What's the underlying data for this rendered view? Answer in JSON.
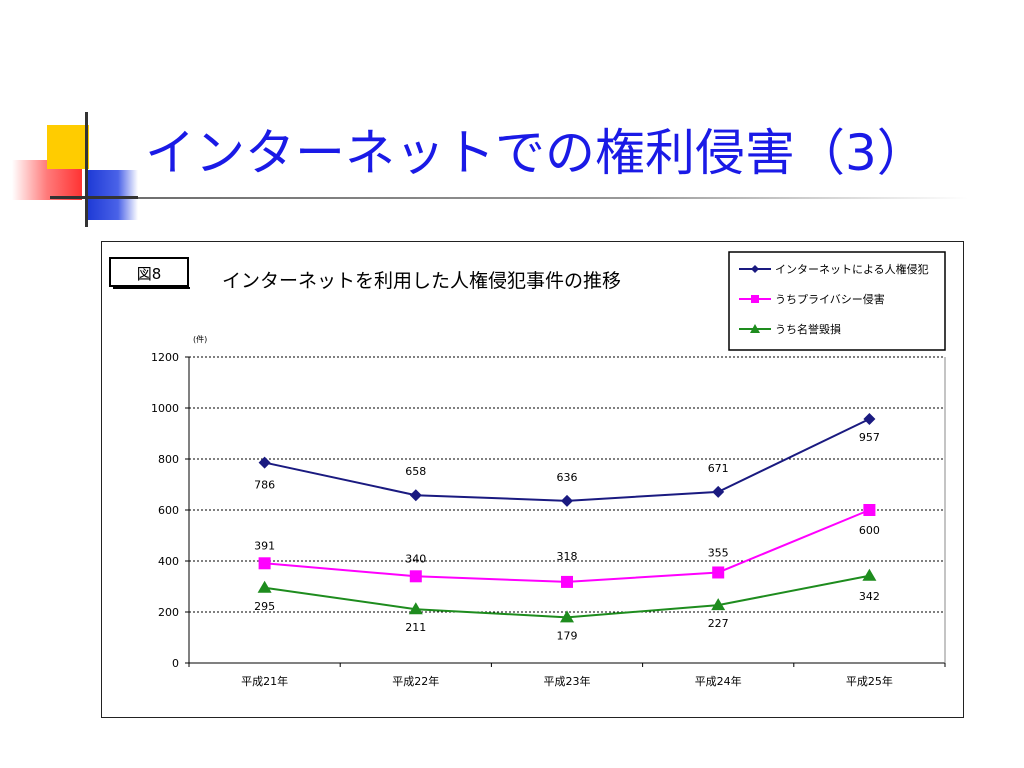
{
  "slide": {
    "title": "インターネットでの権利侵害（3）"
  },
  "chart_data": {
    "type": "line",
    "figure_label": "図8",
    "title": "インターネットを利用した人権侵犯事件の推移",
    "unit_label": "(件)",
    "categories": [
      "平成21年",
      "平成22年",
      "平成23年",
      "平成24年",
      "平成25年"
    ],
    "ylim": [
      0,
      1200
    ],
    "yticks": [
      "0",
      "200",
      "400",
      "600",
      "800",
      "1000",
      "1200"
    ],
    "grid": true,
    "legend_position": "top-right",
    "series": [
      {
        "name": "インターネットによる人権侵犯",
        "color": "#1a1a80",
        "marker": "diamond",
        "values": [
          786,
          658,
          636,
          671,
          957
        ]
      },
      {
        "name": "うちプライバシー侵害",
        "color": "#ff00ff",
        "marker": "square",
        "values": [
          391,
          340,
          318,
          355,
          600
        ]
      },
      {
        "name": "うち名誉毀損",
        "color": "#1e8c1e",
        "marker": "triangle",
        "values": [
          295,
          211,
          179,
          227,
          342
        ]
      }
    ]
  }
}
